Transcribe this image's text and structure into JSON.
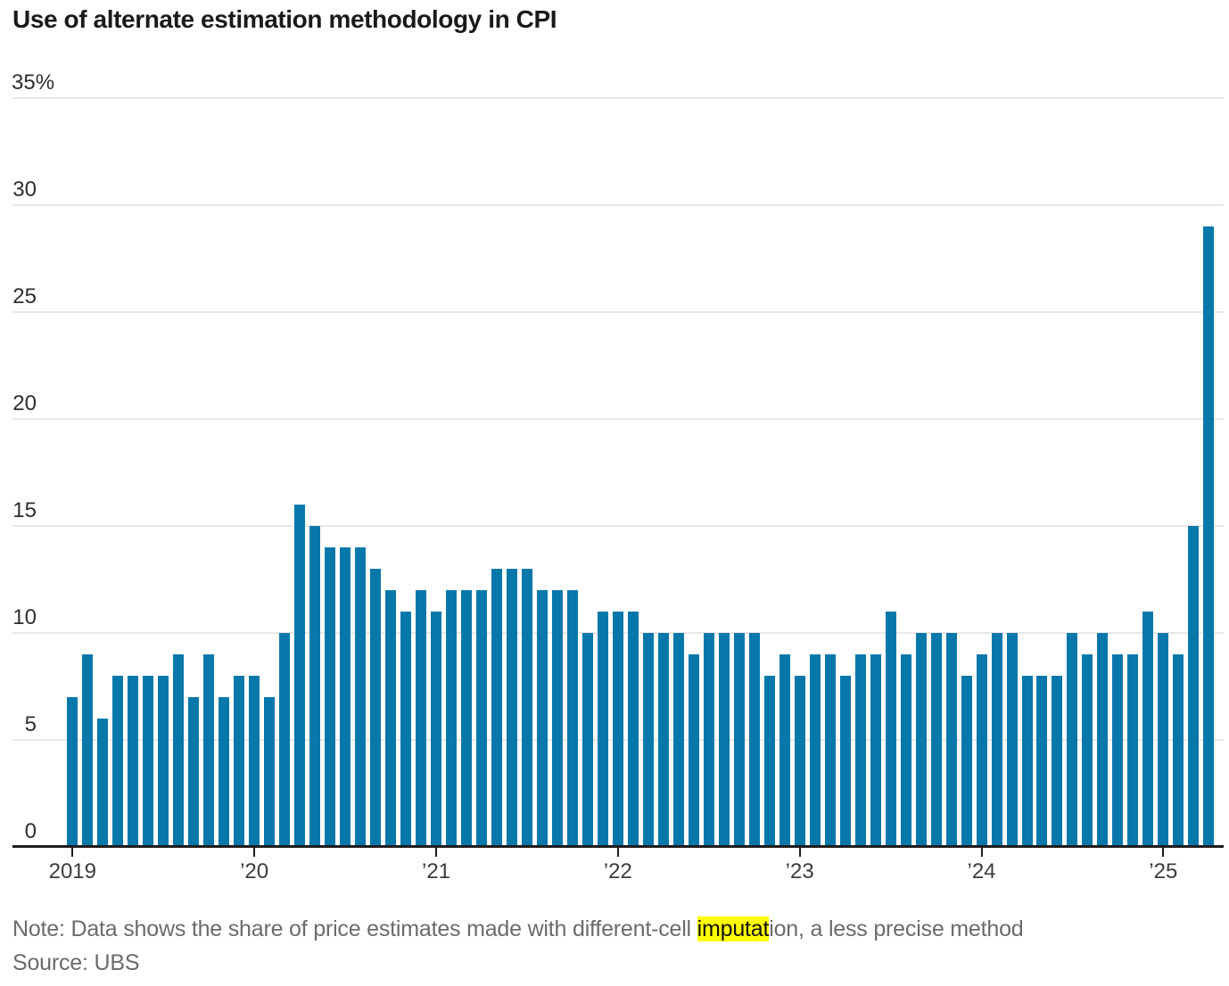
{
  "page": {
    "title": "Use of alternate estimation methodology in CPI",
    "note_prefix": "Note: Data shows the share of price estimates made with different-cell ",
    "note_highlight": "imputat",
    "note_suffix": "ion, a less precise method",
    "source": "Source: UBS"
  },
  "colors": {
    "bar": "#0878aa",
    "gridline": "#e8e8e8",
    "axis": "#1d1d1d",
    "note_text": "#6b6b6b",
    "highlight_bg": "#ffff00"
  },
  "chart_data": {
    "type": "bar",
    "title": "Use of alternate estimation methodology in CPI",
    "unit": "percent",
    "ylim": [
      0,
      35
    ],
    "y_ticks": [
      0,
      5,
      10,
      15,
      20,
      25,
      30,
      35
    ],
    "y_top_tick_label": "35%",
    "grid": true,
    "legend": "none",
    "x_tick_labels": [
      "2019",
      "’20",
      "’21",
      "’22",
      "’23",
      "’24",
      "’25"
    ],
    "x_tick_month_indices": [
      0,
      12,
      24,
      36,
      48,
      60,
      72
    ],
    "months": [
      "2019-01",
      "2019-02",
      "2019-03",
      "2019-04",
      "2019-05",
      "2019-06",
      "2019-07",
      "2019-08",
      "2019-09",
      "2019-10",
      "2019-11",
      "2019-12",
      "2020-01",
      "2020-02",
      "2020-03",
      "2020-04",
      "2020-05",
      "2020-06",
      "2020-07",
      "2020-08",
      "2020-09",
      "2020-10",
      "2020-11",
      "2020-12",
      "2021-01",
      "2021-02",
      "2021-03",
      "2021-04",
      "2021-05",
      "2021-06",
      "2021-07",
      "2021-08",
      "2021-09",
      "2021-10",
      "2021-11",
      "2021-12",
      "2022-01",
      "2022-02",
      "2022-03",
      "2022-04",
      "2022-05",
      "2022-06",
      "2022-07",
      "2022-08",
      "2022-09",
      "2022-10",
      "2022-11",
      "2022-12",
      "2023-01",
      "2023-02",
      "2023-03",
      "2023-04",
      "2023-05",
      "2023-06",
      "2023-07",
      "2023-08",
      "2023-09",
      "2023-10",
      "2023-11",
      "2023-12",
      "2024-01",
      "2024-02",
      "2024-03",
      "2024-04",
      "2024-05",
      "2024-06",
      "2024-07",
      "2024-08",
      "2024-09",
      "2024-10",
      "2024-11",
      "2024-12",
      "2025-01",
      "2025-02",
      "2025-03",
      "2025-04"
    ],
    "values": [
      7,
      9,
      6,
      8,
      8,
      8,
      8,
      9,
      7,
      9,
      7,
      8,
      8,
      7,
      10,
      16,
      15,
      14,
      14,
      14,
      13,
      12,
      11,
      12,
      11,
      12,
      12,
      12,
      13,
      13,
      13,
      12,
      12,
      12,
      10,
      11,
      11,
      11,
      10,
      10,
      10,
      9,
      10,
      10,
      10,
      10,
      8,
      9,
      8,
      9,
      9,
      8,
      9,
      9,
      11,
      9,
      10,
      10,
      10,
      8,
      9,
      10,
      10,
      8,
      8,
      8,
      10,
      9,
      10,
      9,
      9,
      11,
      10,
      9,
      15,
      29
    ]
  }
}
